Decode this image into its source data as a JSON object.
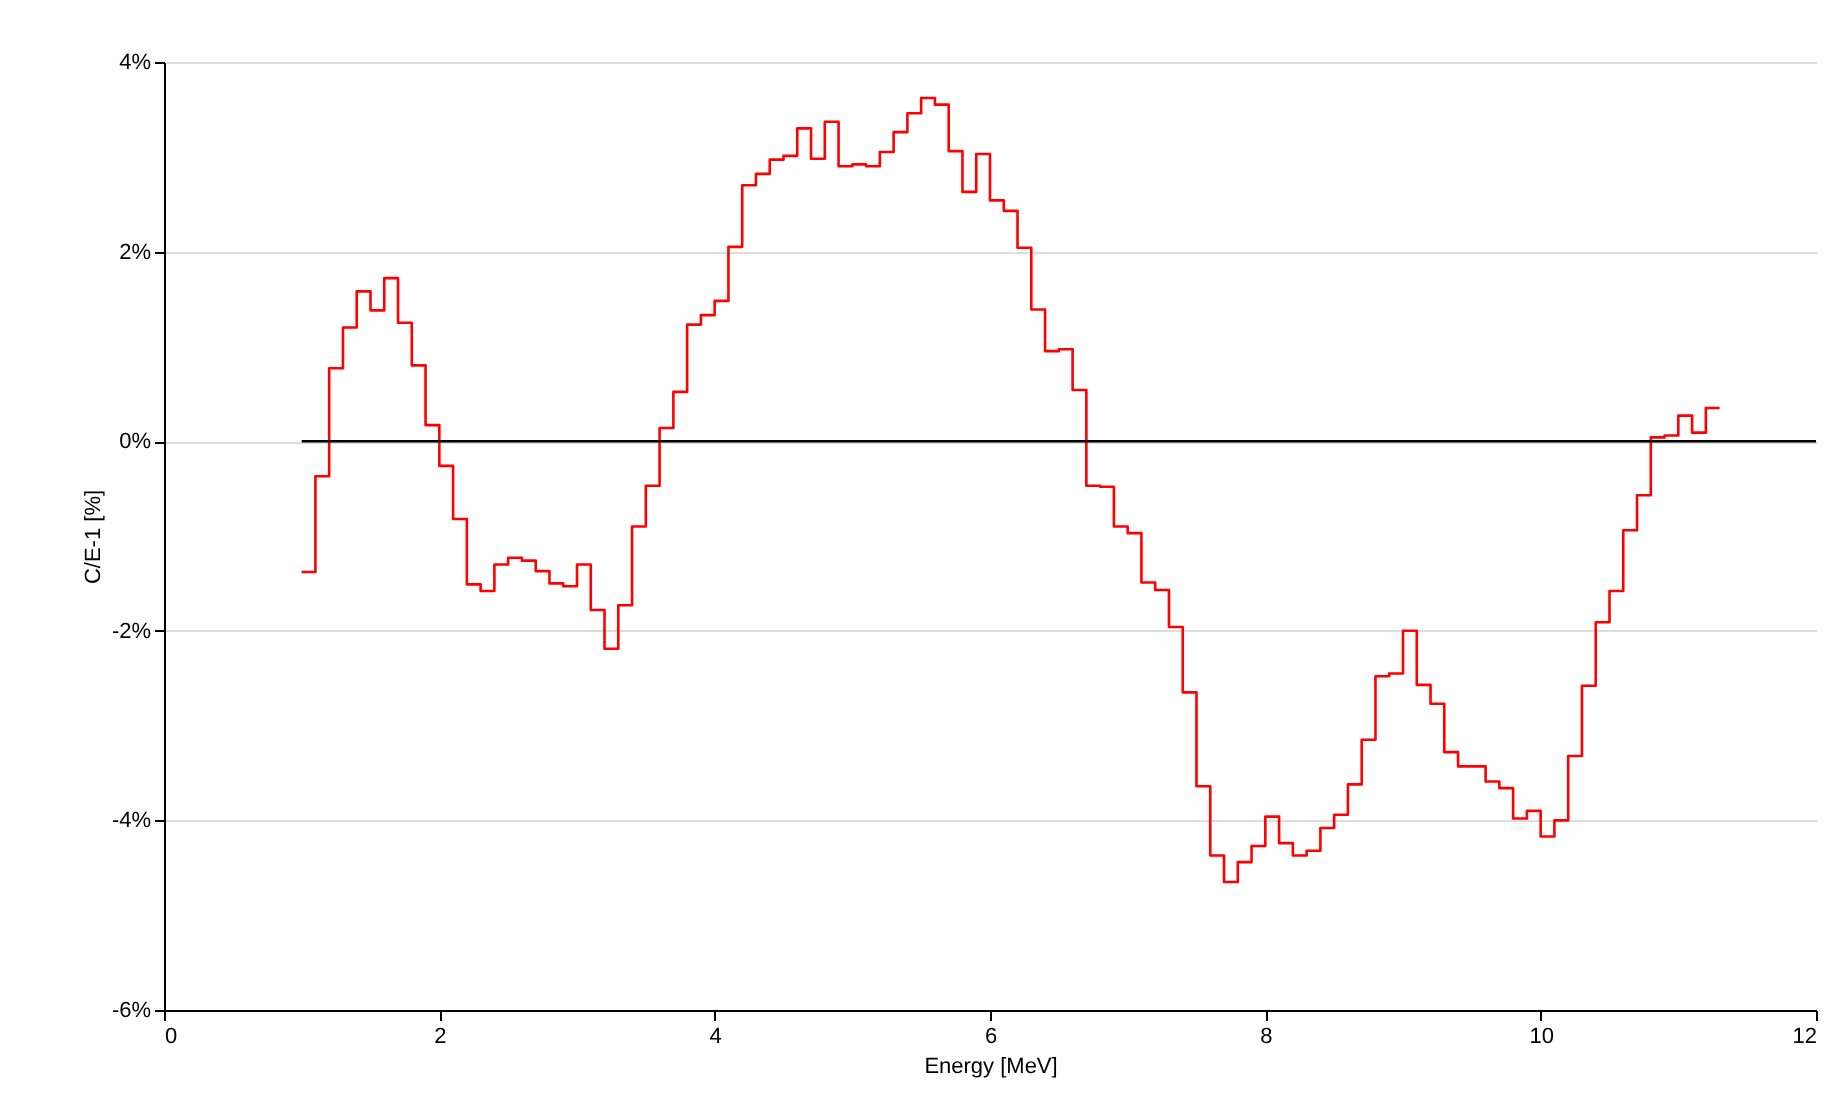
{
  "chart_data": {
    "type": "step",
    "xlabel": "Energy [MeV]",
    "ylabel": "C/E-1 [%]",
    "xlim": [
      0,
      12
    ],
    "xticks": [
      0,
      2,
      4,
      6,
      8,
      10,
      12
    ],
    "ylim": [
      -6,
      4
    ],
    "yticks": [
      {
        "value": -6,
        "label": "-6%"
      },
      {
        "value": -4,
        "label": "-4%"
      },
      {
        "value": -2,
        "label": "-2%"
      },
      {
        "value": 0,
        "label": "0%"
      },
      {
        "value": 2,
        "label": "2%"
      },
      {
        "value": 4,
        "label": "4%"
      }
    ],
    "grid": "y",
    "line_style": "solid",
    "marker": "none",
    "series": [
      {
        "color": "#ff0000",
        "x": [
          1.0,
          1.1,
          1.2,
          1.3,
          1.4,
          1.5,
          1.6,
          1.7,
          1.8,
          1.9,
          2.0,
          2.1,
          2.2,
          2.3,
          2.4,
          2.5,
          2.6,
          2.7,
          2.8,
          2.9,
          3.0,
          3.1,
          3.2,
          3.3,
          3.4,
          3.5,
          3.6,
          3.7,
          3.8,
          3.9,
          4.0,
          4.1,
          4.2,
          4.3,
          4.4,
          4.5,
          4.6,
          4.7,
          4.8,
          4.9,
          5.0,
          5.1,
          5.2,
          5.3,
          5.4,
          5.5,
          5.6,
          5.7,
          5.8,
          5.9,
          6.0,
          6.1,
          6.2,
          6.3,
          6.4,
          6.5,
          6.6,
          6.7,
          6.8,
          6.9,
          7.0,
          7.1,
          7.2,
          7.3,
          7.4,
          7.5,
          7.6,
          7.7,
          7.8,
          7.9,
          8.0,
          8.1,
          8.2,
          8.3,
          8.4,
          8.5,
          8.6,
          8.7,
          8.8,
          8.9,
          9.0,
          9.1,
          9.2,
          9.3,
          9.4,
          9.5,
          9.6,
          9.7,
          9.8,
          9.9,
          10.0,
          10.1,
          10.2,
          10.3,
          10.4,
          10.5,
          10.6,
          10.7,
          10.8,
          10.9,
          11.0,
          11.1,
          11.2,
          11.3
        ],
        "values": [
          -1.38,
          -0.37,
          0.77,
          1.2,
          1.58,
          1.38,
          1.72,
          1.25,
          0.8,
          0.17,
          -0.26,
          -0.82,
          -1.51,
          -1.58,
          -1.3,
          -1.23,
          -1.26,
          -1.37,
          -1.5,
          -1.53,
          -1.3,
          -1.78,
          -2.19,
          -1.73,
          -0.9,
          -0.47,
          0.14,
          0.52,
          1.23,
          1.33,
          1.48,
          2.05,
          2.7,
          2.82,
          2.97,
          3.01,
          3.3,
          2.98,
          3.37,
          2.9,
          2.92,
          2.9,
          3.05,
          3.26,
          3.46,
          3.62,
          3.55,
          3.06,
          2.63,
          3.03,
          2.54,
          2.43,
          2.04,
          1.39,
          0.95,
          0.97,
          0.54,
          -0.47,
          -0.48,
          -0.9,
          -0.97,
          -1.49,
          -1.57,
          -1.96,
          -2.65,
          -3.64,
          -4.37,
          -4.65,
          -4.44,
          -4.27,
          -3.96,
          -4.24,
          -4.37,
          -4.32,
          -4.08,
          -3.94,
          -3.62,
          -3.15,
          -2.48,
          -2.45,
          -2.0,
          -2.57,
          -2.77,
          -3.28,
          -3.43,
          -3.43,
          -3.59,
          -3.66,
          -3.98,
          -3.9,
          -4.17,
          -4.0,
          -3.32,
          -2.58,
          -1.91,
          -1.58,
          -0.94,
          -0.57,
          0.04,
          0.06,
          0.27,
          0.09,
          0.35,
          0.35
        ]
      },
      {
        "type": "line",
        "color": "#000000",
        "x": [
          1,
          12
        ],
        "values": [
          0,
          0
        ]
      }
    ]
  }
}
